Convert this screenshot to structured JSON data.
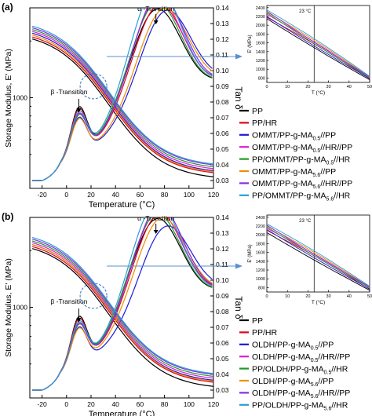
{
  "chart_data": [
    {
      "panel_label": "(a)",
      "type": "line",
      "xlabel": "Temperature (°C)",
      "ylabel": "Storage Modulus, E' (MPa)",
      "y2label": "Tan δ",
      "xlim": [
        -30,
        120
      ],
      "xticks": [
        -20,
        0,
        20,
        40,
        60,
        80,
        100,
        120
      ],
      "ylim_log": [
        330,
        3000
      ],
      "ytick_labels": [
        "1000"
      ],
      "y2lim": [
        0.025,
        0.14
      ],
      "y2ticks": [
        "0.03",
        "0.04",
        "0.05",
        "0.06",
        "0.07",
        "0.08",
        "0.09",
        "0.10",
        "0.11",
        "0.12",
        "0.13",
        "0.14"
      ],
      "annotations": [
        "β -Transition",
        "α -Transition"
      ],
      "legend": [
        "PP",
        "PP/HR",
        "OMMT/PP-g-MA0.5//PP",
        "OMMT/PP-g-MA0.5//HR//PP",
        "PP/OMMT/PP-g-MA0.5//HR",
        "OMMT/PP-g-MA5.6//PP",
        "OMMT/PP-g-MA5.6//HR//PP",
        "PP/OMMT/PP-g-MA5.6//HR"
      ],
      "legend_parts": [
        {
          "a": "PP",
          "s": "",
          "b": ""
        },
        {
          "a": "PP/HR",
          "s": "",
          "b": ""
        },
        {
          "a": "OMMT/PP-g-MA",
          "s": "0.5",
          "b": "//PP"
        },
        {
          "a": "OMMT/PP-g-MA",
          "s": "0.5",
          "b": "//HR//PP"
        },
        {
          "a": "PP/OMMT/PP-g-MA",
          "s": "0.5",
          "b": "//HR"
        },
        {
          "a": "OMMT/PP-g-MA",
          "s": "5.6",
          "b": "//PP"
        },
        {
          "a": "OMMT/PP-g-MA",
          "s": "5.6",
          "b": "//HR//PP"
        },
        {
          "a": "PP/OMMT/PP-g-MA",
          "s": "5.6",
          "b": "//HR"
        }
      ],
      "series": [
        {
          "color": "#000000",
          "tan_peak_x": 72,
          "tan_peak": 0.118,
          "beta_peak": 0.07,
          "E_start": 2050,
          "E_end": 380
        },
        {
          "color": "#e3001b",
          "tan_peak_x": 74,
          "tan_peak": 0.12,
          "beta_peak": 0.069,
          "E_start": 2100,
          "E_end": 400
        },
        {
          "color": "#1a1adc",
          "tan_peak_x": 80,
          "tan_peak": 0.114,
          "beta_peak": 0.064,
          "E_start": 2200,
          "E_end": 410
        },
        {
          "color": "#e01ad6",
          "tan_peak_x": 73,
          "tan_peak": 0.124,
          "beta_peak": 0.066,
          "E_start": 2250,
          "E_end": 420
        },
        {
          "color": "#1f9a2a",
          "tan_peak_x": 72,
          "tan_peak": 0.122,
          "beta_peak": 0.065,
          "E_start": 2300,
          "E_end": 430
        },
        {
          "color": "#f08c00",
          "tan_peak_x": 78,
          "tan_peak": 0.116,
          "beta_peak": 0.063,
          "E_start": 2150,
          "E_end": 405
        },
        {
          "color": "#8a2be2",
          "tan_peak_x": 74,
          "tan_peak": 0.127,
          "beta_peak": 0.066,
          "E_start": 2350,
          "E_end": 440
        },
        {
          "color": "#2a9fd6",
          "tan_peak_x": 72,
          "tan_peak": 0.132,
          "beta_peak": 0.067,
          "E_start": 2400,
          "E_end": 445
        }
      ],
      "inset": {
        "xlabel": "T (°C)",
        "ylabel": "E' (MPa)",
        "xlim": [
          0,
          50
        ],
        "xticks": [
          0,
          10,
          20,
          30,
          40,
          50
        ],
        "yticks": [
          800,
          1000,
          1200,
          1400,
          1600,
          1800,
          2000,
          2200,
          2400
        ],
        "ylim": [
          700,
          2450
        ],
        "marker_label": "23 °C",
        "marker_x": 23,
        "y_at_0": [
          2150,
          2180,
          2200,
          2250,
          2280,
          2300,
          2320,
          2350
        ],
        "y_at_50": [
          760,
          780,
          790,
          800,
          810,
          820,
          830,
          840
        ]
      }
    },
    {
      "panel_label": "(b)",
      "type": "line",
      "xlabel": "Temperature (°C)",
      "ylabel": "Storage Modulus, E' (MPa)",
      "y2label": "Tan δ",
      "xlim": [
        -30,
        120
      ],
      "xticks": [
        -20,
        0,
        20,
        40,
        60,
        80,
        100,
        120
      ],
      "ylim_log": [
        330,
        3000
      ],
      "ytick_labels": [
        "1000"
      ],
      "y2lim": [
        0.025,
        0.14
      ],
      "y2ticks": [
        "0.03",
        "0.04",
        "0.05",
        "0.06",
        "0.07",
        "0.08",
        "0.09",
        "0.10",
        "0.11",
        "0.12",
        "0.13",
        "0.14"
      ],
      "annotations": [
        "β -Transition",
        "α -Transition"
      ],
      "legend": [
        "PP",
        "PP/HR",
        "OLDH/PP-g-MA0.5//PP",
        "OLDH/PP-g-MA0.5//HR//PP",
        "PP/OLDH/PP-g-MA0.5//HR",
        "OLDH/PP-g-MA5.6//PP",
        "OLDH/PP-g-MA5.6//HR//PP",
        "PP/OLDH/PP-g-MA5.6//HR"
      ],
      "legend_parts": [
        {
          "a": "PP",
          "s": "",
          "b": ""
        },
        {
          "a": "PP/HR",
          "s": "",
          "b": ""
        },
        {
          "a": "OLDH/PP-g-MA",
          "s": "0.5",
          "b": "//PP"
        },
        {
          "a": "OLDH/PP-g-MA",
          "s": "0.5",
          "b": "//HR//PP"
        },
        {
          "a": "PP/OLDH/PP-g-MA",
          "s": "0.5",
          "b": "//HR"
        },
        {
          "a": "OLDH/PP-g-MA",
          "s": "5.6",
          "b": "//PP"
        },
        {
          "a": "OLDH/PP-g-MA",
          "s": "5.6",
          "b": "//HR//PP"
        },
        {
          "a": "PP/OLDH/PP-g-MA",
          "s": "5.6",
          "b": "//HR"
        }
      ],
      "series": [
        {
          "color": "#000000",
          "tan_peak_x": 72,
          "tan_peak": 0.118,
          "beta_peak": 0.07,
          "E_start": 2050,
          "E_end": 380
        },
        {
          "color": "#e3001b",
          "tan_peak_x": 74,
          "tan_peak": 0.12,
          "beta_peak": 0.069,
          "E_start": 2100,
          "E_end": 400
        },
        {
          "color": "#1a1adc",
          "tan_peak_x": 80,
          "tan_peak": 0.11,
          "beta_peak": 0.064,
          "E_start": 2150,
          "E_end": 410
        },
        {
          "color": "#e01ad6",
          "tan_peak_x": 73,
          "tan_peak": 0.122,
          "beta_peak": 0.066,
          "E_start": 2200,
          "E_end": 420
        },
        {
          "color": "#1f9a2a",
          "tan_peak_x": 72,
          "tan_peak": 0.121,
          "beta_peak": 0.065,
          "E_start": 2250,
          "E_end": 430
        },
        {
          "color": "#f08c00",
          "tan_peak_x": 76,
          "tan_peak": 0.117,
          "beta_peak": 0.063,
          "E_start": 2150,
          "E_end": 405
        },
        {
          "color": "#8a2be2",
          "tan_peak_x": 74,
          "tan_peak": 0.125,
          "beta_peak": 0.066,
          "E_start": 2300,
          "E_end": 440
        },
        {
          "color": "#2a9fd6",
          "tan_peak_x": 72,
          "tan_peak": 0.128,
          "beta_peak": 0.067,
          "E_start": 2350,
          "E_end": 445
        }
      ],
      "inset": {
        "xlabel": "T (°C)",
        "ylabel": "E' (MPa)",
        "xlim": [
          0,
          50
        ],
        "xticks": [
          0,
          10,
          20,
          30,
          40,
          50
        ],
        "yticks": [
          800,
          1000,
          1200,
          1400,
          1600,
          1800,
          2000,
          2200,
          2400
        ],
        "ylim": [
          700,
          2450
        ],
        "marker_label": "23 °C",
        "marker_x": 23,
        "y_at_0": [
          2050,
          2100,
          2120,
          2150,
          2180,
          2200,
          2220,
          2250
        ],
        "y_at_50": [
          740,
          760,
          770,
          790,
          800,
          810,
          820,
          830
        ]
      }
    }
  ]
}
